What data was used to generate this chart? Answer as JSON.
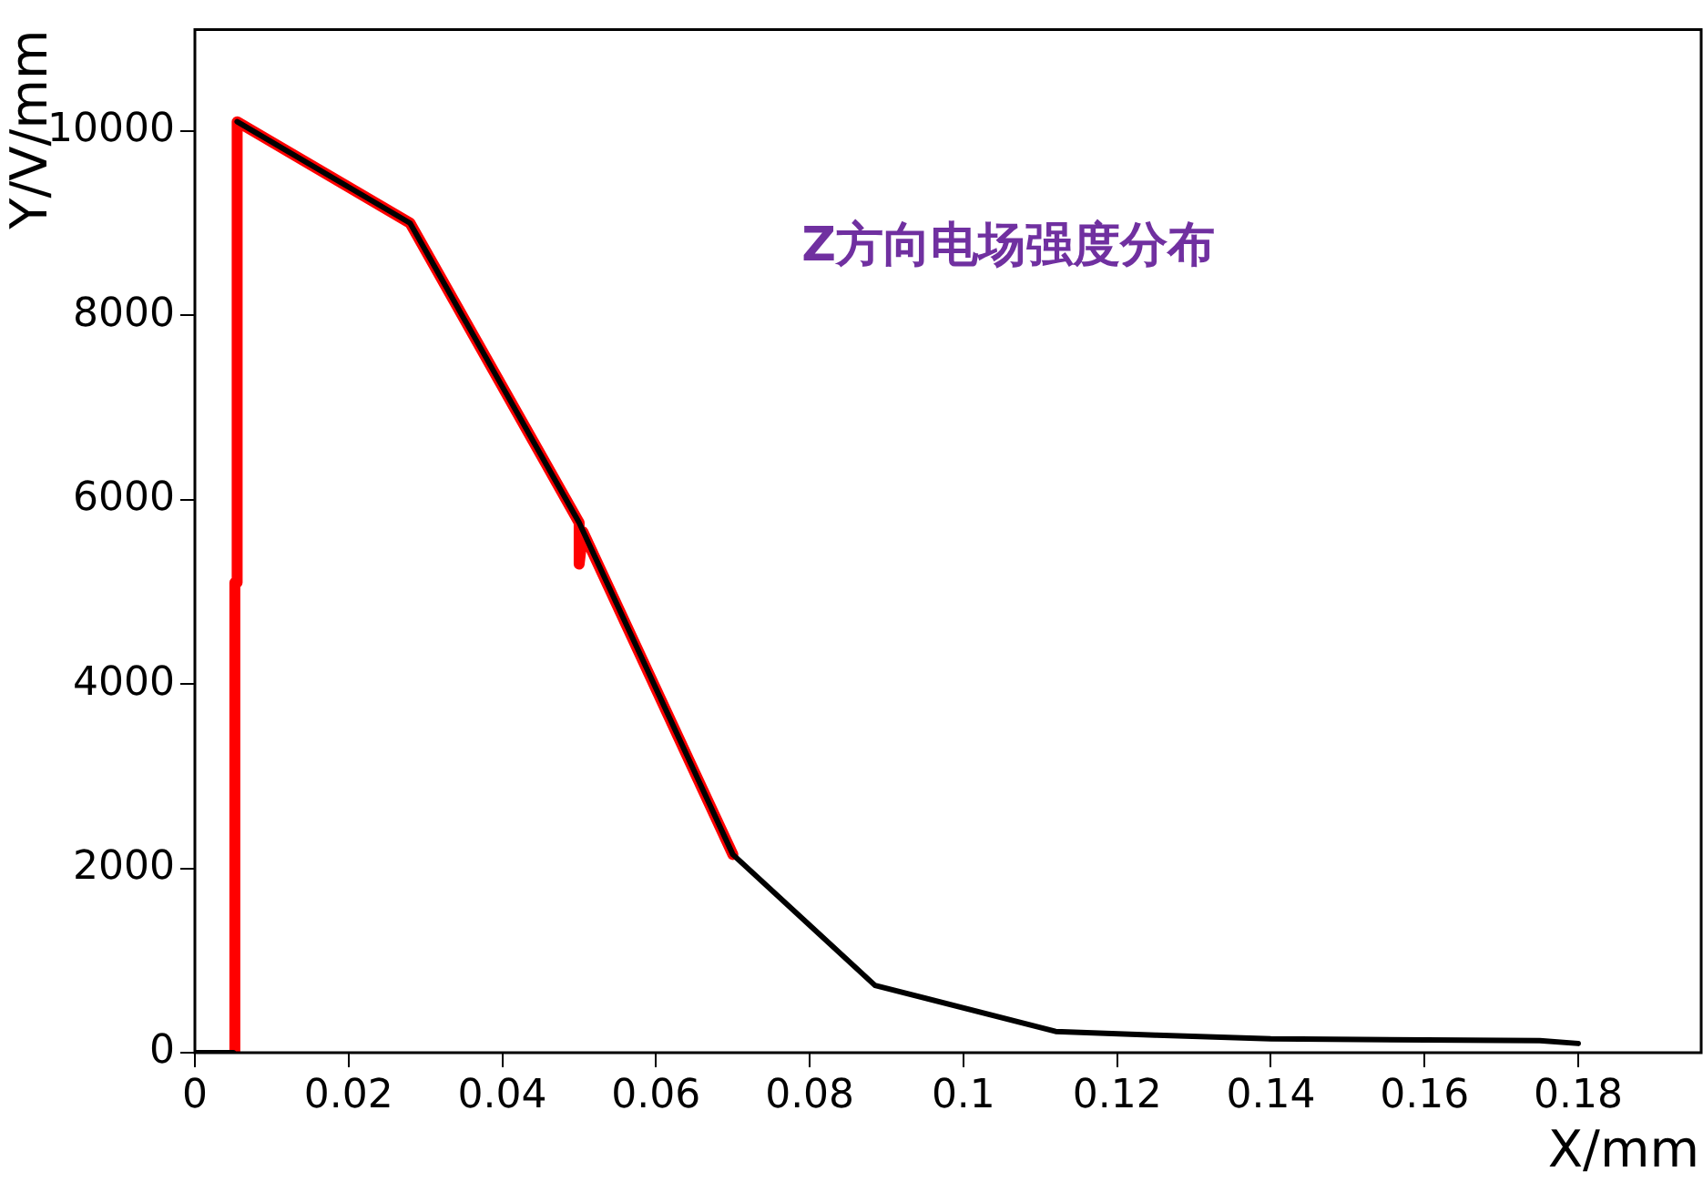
{
  "chart_data": {
    "type": "line",
    "annotations": [
      "Z方向电场强度分布"
    ],
    "xlabel": "X/mm",
    "ylabel": "Y/V/mm",
    "xlim": [
      0,
      0.196
    ],
    "xticks": [
      0,
      0.02,
      0.04,
      0.06,
      0.08,
      0.1,
      0.12,
      0.14,
      0.16,
      0.18
    ],
    "ylim": [
      0,
      11100
    ],
    "yticks": [
      0,
      2000,
      4000,
      6000,
      8000,
      10000
    ],
    "marker": "none",
    "line_style": "solid",
    "series": [
      {
        "color": "#ff0000",
        "x": [
          0.0052,
          0.0052,
          0.0055,
          0.0055,
          0.028,
          0.05,
          0.05,
          0.0505,
          0.07
        ],
        "values": [
          0,
          5100,
          5100,
          10100,
          9000,
          5750,
          5300,
          5650,
          2150
        ]
      },
      {
        "color": "#000000",
        "x": [
          0,
          0.005,
          0.0053,
          0.0055,
          0.028,
          0.05,
          0.07,
          0.0885,
          0.112,
          0.125,
          0.14,
          0.175,
          0.18
        ],
        "values": [
          0,
          0,
          null,
          10100,
          9000,
          5750,
          2150,
          730,
          230,
          190,
          150,
          130,
          100
        ]
      }
    ]
  }
}
